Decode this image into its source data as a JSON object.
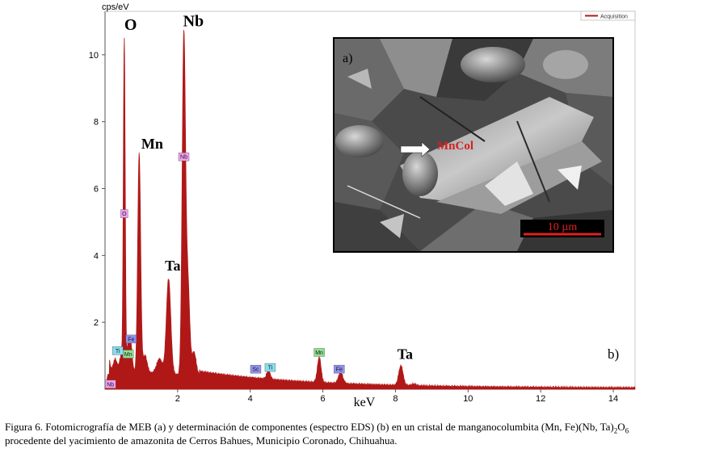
{
  "chart_data": {
    "type": "line",
    "unit_label": "cps/eV",
    "xlabel": "keV",
    "xlim": [
      0,
      14.6
    ],
    "ylim": [
      0,
      11.3
    ],
    "x_ticks": [
      "2",
      "4",
      "6",
      "8",
      "10",
      "12",
      "14"
    ],
    "y_ticks": [
      "2",
      "4",
      "6",
      "8",
      "10"
    ],
    "legend": [
      {
        "name": "Acquisition",
        "color": "#b01818"
      }
    ],
    "series_color": "#b01818",
    "peaks": [
      {
        "x": 0.09,
        "y": 0.45,
        "w": 0.04
      },
      {
        "x": 0.28,
        "y": 0.9,
        "w": 0.05
      },
      {
        "x": 0.45,
        "y": 1.0,
        "w": 0.05
      },
      {
        "x": 0.53,
        "y": 10.4,
        "w": 0.025
      },
      {
        "x": 0.64,
        "y": 1.3,
        "w": 0.04
      },
      {
        "x": 0.71,
        "y": 1.3,
        "w": 0.04
      },
      {
        "x": 0.94,
        "y": 7.05,
        "w": 0.04
      },
      {
        "x": 1.1,
        "y": 1.0,
        "w": 0.06
      },
      {
        "x": 1.5,
        "y": 0.9,
        "w": 0.08
      },
      {
        "x": 1.75,
        "y": 3.3,
        "w": 0.06
      },
      {
        "x": 2.17,
        "y": 10.5,
        "w": 0.045
      },
      {
        "x": 2.28,
        "y": 3.2,
        "w": 0.05
      },
      {
        "x": 2.45,
        "y": 1.1,
        "w": 0.06
      },
      {
        "x": 4.5,
        "y": 0.55,
        "w": 0.05
      },
      {
        "x": 5.9,
        "y": 0.95,
        "w": 0.05
      },
      {
        "x": 6.49,
        "y": 0.5,
        "w": 0.06
      },
      {
        "x": 8.15,
        "y": 0.7,
        "w": 0.06
      },
      {
        "x": 8.5,
        "y": 0.15,
        "w": 0.06
      }
    ],
    "element_tags": [
      {
        "label": "Nb",
        "x": 0.15,
        "y": 0.15,
        "color": "#f0a0f0"
      },
      {
        "label": "Ti",
        "x": 0.35,
        "y": 1.15,
        "color": "#88ddf0"
      },
      {
        "label": "O",
        "x": 0.53,
        "y": 5.25,
        "color": "#f0a0f0"
      },
      {
        "label": "Mn",
        "x": 0.64,
        "y": 1.05,
        "color": "#90e090"
      },
      {
        "label": "Fe",
        "x": 0.72,
        "y": 1.5,
        "color": "#9090f0"
      },
      {
        "label": "Nb",
        "x": 2.17,
        "y": 6.95,
        "color": "#f0a0f0"
      },
      {
        "label": "Sc",
        "x": 4.15,
        "y": 0.6,
        "color": "#9090f0"
      },
      {
        "label": "Ti",
        "x": 4.55,
        "y": 0.65,
        "color": "#88ddf0"
      },
      {
        "label": "Mn",
        "x": 5.9,
        "y": 1.1,
        "color": "#90e090"
      },
      {
        "label": "Fe",
        "x": 6.45,
        "y": 0.6,
        "color": "#9090f0"
      }
    ],
    "peak_labels": [
      {
        "text": "O",
        "x": 0.53,
        "y": 10.75,
        "size": 20
      },
      {
        "text": "Nb",
        "x": 2.15,
        "y": 10.85,
        "size": 20
      },
      {
        "text": "Mn",
        "x": 1.0,
        "y": 7.2,
        "size": 18
      },
      {
        "text": "Ta",
        "x": 1.65,
        "y": 3.55,
        "size": 18
      },
      {
        "text": "Ta",
        "x": 8.05,
        "y": 0.9,
        "size": 18
      }
    ],
    "panel_label_b": "b)"
  },
  "inset": {
    "panel_label": "a)",
    "arrow_label": "MnCol",
    "scale_bar": "10 µm"
  },
  "caption": {
    "line1_prefix": "Figura 6. Fotomicrografía de MEB (a) y determinación de componentes (espectro EDS) (b) en un cristal de manganocolumbita (Mn, Fe)(Nb, Ta)",
    "sub1": "2",
    "mid": "O",
    "sub2": "6",
    "line2": "procedente del yacimiento de amazonita de Cerros Bahues, Municipio Coronado, Chihuahua."
  }
}
